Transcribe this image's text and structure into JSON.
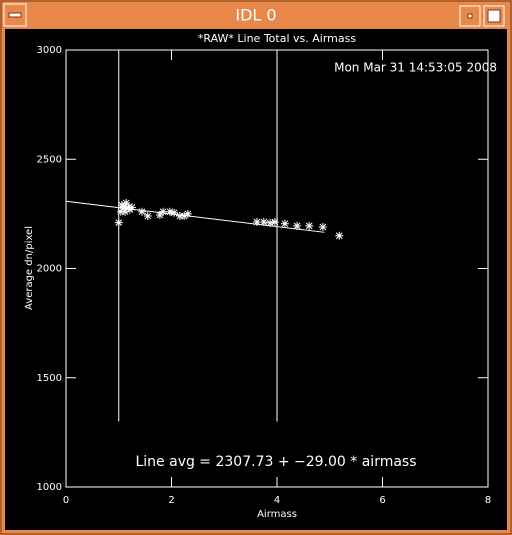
{
  "window": {
    "title": "IDL 0"
  },
  "chart_data": {
    "type": "scatter",
    "title": "*RAW* Line Total vs. Airmass",
    "timestamp": "Mon Mar 31 14:53:05 2008",
    "x_label": "Airmass",
    "y_label": "Average dn/pixel",
    "annotation": "Line avg = 2307.73 + −29.00 * airmass",
    "xlim": [
      0,
      8
    ],
    "xticks": [
      0,
      2,
      4,
      6,
      8
    ],
    "ylim": [
      1000,
      3000
    ],
    "yticks": [
      1000,
      1500,
      2000,
      2500,
      3000
    ],
    "color": "#ffffff",
    "x": [
      1.0,
      1.04,
      1.06,
      1.1,
      1.14,
      1.18,
      1.21,
      1.25,
      1.12,
      1.44,
      1.55,
      1.78,
      1.84,
      1.97,
      2.05,
      2.16,
      2.24,
      2.31,
      3.62,
      3.75,
      3.87,
      3.96,
      4.15,
      4.38,
      4.61,
      4.87,
      5.18
    ],
    "values": [
      2210,
      2260,
      2290,
      2280,
      2300,
      2280,
      2270,
      2280,
      2260,
      2260,
      2240,
      2245,
      2260,
      2260,
      2255,
      2240,
      2240,
      2250,
      2213,
      2213,
      2208,
      2213,
      2205,
      2195,
      2195,
      2190,
      2150
    ],
    "fit": {
      "intercept": 2307.73,
      "slope": -29.0,
      "x": [
        0,
        4.9
      ]
    },
    "vlines": {
      "x": [
        1,
        4
      ],
      "ymin": 1300
    }
  }
}
